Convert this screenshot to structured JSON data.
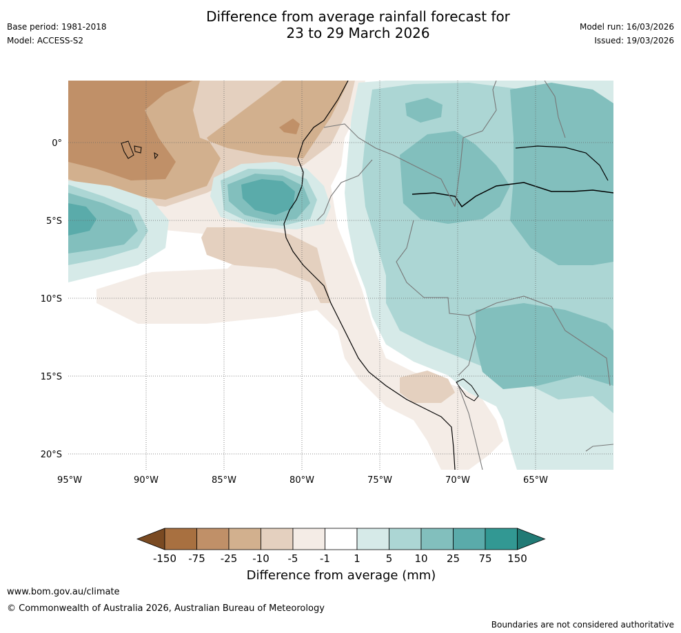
{
  "title_line1": "Difference from average rainfall forecast for",
  "title_line2": "23 to 29 March 2026",
  "base_period": "Base period: 1981-2018",
  "model": "Model: ACCESS-S2",
  "model_run": "Model run: 16/03/2026",
  "issued": "Issued: 19/03/2026",
  "lat_labels": [
    "0°",
    "5°S",
    "10°S",
    "15°S",
    "20°S"
  ],
  "lon_labels": [
    "95°W",
    "90°W",
    "85°W",
    "80°W",
    "75°W",
    "70°W",
    "65°W"
  ],
  "colorbar": {
    "ticks": [
      "-150",
      "-75",
      "-25",
      "-10",
      "-5",
      "-1",
      "1",
      "5",
      "10",
      "25",
      "75",
      "150"
    ],
    "colors": [
      "#7a4a22",
      "#a87040",
      "#c09068",
      "#d2b08e",
      "#e4d0bf",
      "#f4ece6",
      "#ffffff",
      "#d6eae8",
      "#acd6d4",
      "#82bfbd",
      "#5aabaa",
      "#329893",
      "#217a75"
    ],
    "title": "Difference from average (mm)"
  },
  "footer": {
    "url": "www.bom.gov.au/climate",
    "copyright": "© Commonwealth of Australia 2026, Australian Bureau of Meteorology",
    "disclaimer": "Boundaries are not considered authoritative"
  }
}
